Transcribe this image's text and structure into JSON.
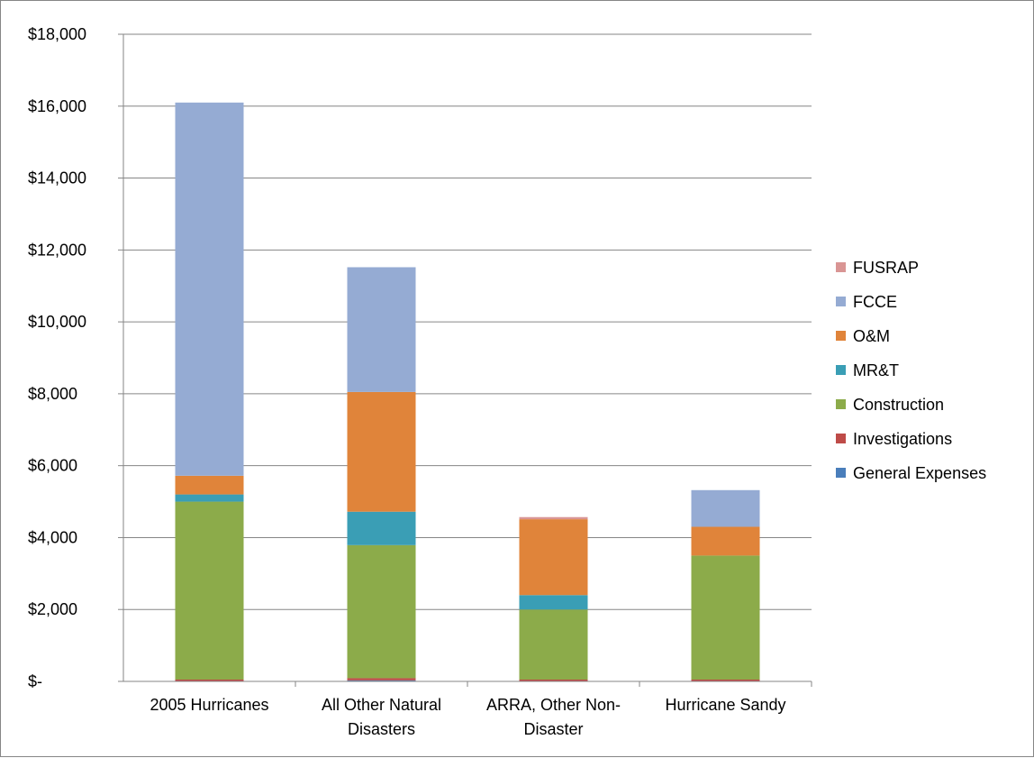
{
  "chart_data": {
    "type": "bar",
    "stacked": true,
    "title": "",
    "xlabel": "",
    "ylabel": "",
    "ylim": [
      0,
      18000
    ],
    "y_tick_step": 2000,
    "y_tick_labels": [
      "$-",
      "$2,000",
      "$4,000",
      "$6,000",
      "$8,000",
      "$10,000",
      "$12,000",
      "$14,000",
      "$16,000",
      "$18,000"
    ],
    "grid": true,
    "legend_position": "right",
    "categories": [
      [
        "2005 Hurricanes"
      ],
      [
        "All Other Natural",
        "Disasters"
      ],
      [
        "ARRA, Other Non-",
        "Disaster"
      ],
      [
        "Hurricane Sandy"
      ]
    ],
    "series": [
      {
        "name": "General Expenses",
        "color": "#4a7ebb",
        "values": [
          10,
          30,
          10,
          10
        ]
      },
      {
        "name": "Investigations",
        "color": "#be4b48",
        "values": [
          40,
          60,
          40,
          40
        ]
      },
      {
        "name": "Construction",
        "color": "#8cab4a",
        "values": [
          4950,
          3700,
          1950,
          3450
        ]
      },
      {
        "name": "MR&T",
        "color": "#3a9eb5",
        "values": [
          200,
          930,
          400,
          0
        ]
      },
      {
        "name": "O&M",
        "color": "#e0843a",
        "values": [
          520,
          3330,
          2110,
          800
        ]
      },
      {
        "name": "FCCE",
        "color": "#95abd3",
        "values": [
          10380,
          3470,
          0,
          1020
        ]
      },
      {
        "name": "FUSRAP",
        "color": "#d99594",
        "values": [
          0,
          0,
          60,
          0
        ]
      }
    ]
  }
}
